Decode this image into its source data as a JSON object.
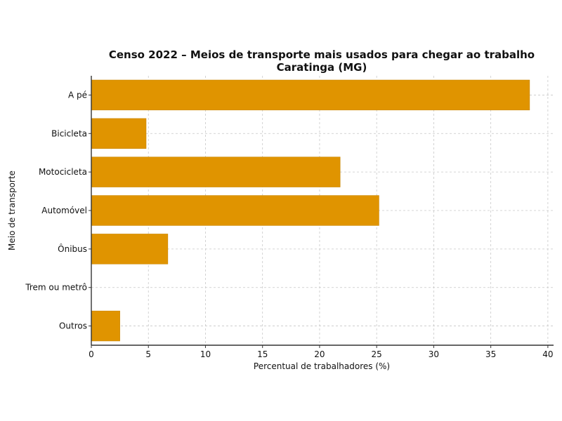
{
  "chart_data": {
    "type": "bar",
    "orientation": "horizontal",
    "title_line1": "Censo 2022 – Meios de transporte mais usados para chegar ao trabalho",
    "title_line2": "Caratinga (MG)",
    "xlabel": "Percentual de trabalhadores (%)",
    "ylabel": "Meio de transporte",
    "categories": [
      "A pé",
      "Bicicleta",
      "Motocicleta",
      "Automóvel",
      "Ônibus",
      "Trem ou metrô",
      "Outros"
    ],
    "values": [
      38.4,
      4.8,
      21.8,
      25.2,
      6.7,
      0,
      2.5
    ],
    "xlim": [
      0,
      40.5
    ],
    "xticks": [
      0,
      5,
      10,
      15,
      20,
      25,
      30,
      35,
      40
    ],
    "bar_color": "#E09400",
    "grid": true
  }
}
